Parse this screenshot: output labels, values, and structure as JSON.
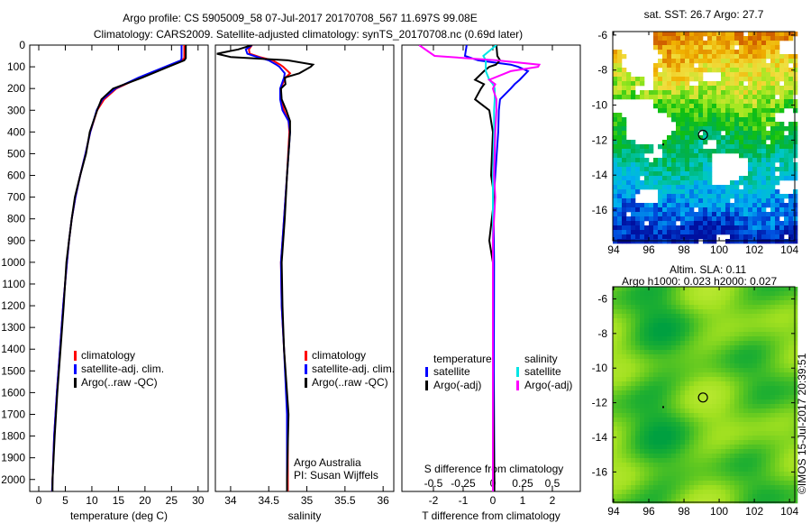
{
  "title": {
    "line1": "Argo profile: CS 5905009_58 07-Jul-2017 20170708_567 11.697S 99.08E",
    "line2": "Climatology: CARS2009. Satellite-adjusted climatology: synTS_20170708.nc (0.69d later)"
  },
  "credit": "©IMOS 15-Jul-2017 20:39:51",
  "colors": {
    "climatology": "#ff0000",
    "satellite": "#0000ff",
    "argo": "#000000",
    "s_satellite": "#00e5e5",
    "s_argo": "#ff00ff"
  },
  "chart_data": [
    {
      "type": "line",
      "id": "temperature",
      "xlabel": "temperature (deg C)",
      "ylabel": "",
      "xlim": [
        -1.7,
        31.9
      ],
      "ylim": [
        0,
        2055
      ],
      "xticks": [
        "0",
        "5",
        "10",
        "15",
        "20",
        "25",
        "30"
      ],
      "xtick_values": [
        0,
        5,
        10,
        15,
        20,
        25,
        30
      ],
      "yticks": [
        "0",
        "100",
        "200",
        "300",
        "400",
        "500",
        "600",
        "700",
        "800",
        "900",
        "1000",
        "1100",
        "1200",
        "1300",
        "1400",
        "1500",
        "1600",
        "1700",
        "1800",
        "1900",
        "2000"
      ],
      "ytick_values": [
        0,
        100,
        200,
        300,
        400,
        500,
        600,
        700,
        800,
        900,
        1000,
        1100,
        1200,
        1300,
        1400,
        1500,
        1600,
        1700,
        1800,
        1900,
        2000
      ],
      "depth": [
        0,
        60,
        70,
        100,
        150,
        200,
        250,
        300,
        400,
        500,
        600,
        700,
        800,
        900,
        1000,
        1200,
        1400,
        1600,
        1800,
        2000,
        2055
      ],
      "series": [
        {
          "name": "climatology",
          "color": "climatology",
          "values": [
            27.4,
            27.4,
            27.0,
            24.0,
            19.0,
            14.6,
            12.3,
            11.0,
            9.7,
            8.8,
            7.8,
            6.9,
            6.2,
            5.7,
            5.3,
            4.6,
            4.0,
            3.4,
            2.9,
            2.6,
            2.5
          ]
        },
        {
          "name": "satellite-adj. clim.",
          "color": "satellite",
          "values": [
            26.9,
            26.9,
            26.8,
            23.8,
            18.8,
            14.4,
            12.0,
            10.9,
            9.7,
            8.8,
            7.8,
            6.9,
            6.2,
            5.7,
            5.3,
            4.6,
            4.0,
            3.4,
            2.9,
            2.6,
            2.5
          ]
        },
        {
          "name": "Argo(..raw -QC)",
          "color": "argo",
          "values": [
            27.7,
            27.7,
            27.4,
            24.4,
            19.5,
            14.0,
            11.8,
            11.0,
            9.6,
            8.9,
            7.8,
            6.8,
            6.2,
            5.7,
            5.2,
            4.7,
            4.1,
            3.5,
            3.0,
            2.6,
            2.6
          ]
        }
      ],
      "legend": [
        "climatology",
        "satellite-adj. clim.",
        "Argo(..raw -QC)"
      ]
    },
    {
      "type": "line",
      "id": "salinity",
      "xlabel": "salinity",
      "xlim": [
        33.8,
        36.14
      ],
      "ylim": [
        0,
        2055
      ],
      "xticks": [
        "34",
        "34.5",
        "35",
        "35.5",
        "36"
      ],
      "xtick_values": [
        34,
        34.5,
        35,
        35.5,
        36
      ],
      "depth": [
        0,
        20,
        40,
        55,
        70,
        90,
        100,
        130,
        150,
        180,
        200,
        250,
        300,
        350,
        400,
        600,
        800,
        1000,
        1200,
        1400,
        1700,
        2000,
        2055
      ],
      "series": [
        {
          "name": "climatology",
          "color": "climatology",
          "values": [
            34.28,
            34.24,
            34.25,
            34.38,
            34.55,
            34.65,
            34.69,
            34.78,
            34.72,
            34.68,
            34.66,
            34.66,
            34.7,
            34.76,
            34.77,
            34.74,
            34.7,
            34.66,
            34.67,
            34.7,
            34.75,
            34.75,
            34.75
          ]
        },
        {
          "name": "satellite-adj. clim.",
          "color": "satellite",
          "values": [
            34.28,
            34.2,
            34.22,
            34.35,
            34.5,
            34.6,
            34.64,
            34.71,
            34.7,
            34.67,
            34.65,
            34.65,
            34.68,
            34.76,
            34.78,
            34.74,
            34.7,
            34.66,
            34.67,
            34.7,
            34.74,
            34.74,
            34.74
          ]
        },
        {
          "name": "Argo(..raw -QC)",
          "color": "argo",
          "values": [
            34.28,
            34.1,
            33.82,
            34.0,
            34.75,
            35.08,
            35.05,
            34.9,
            34.71,
            34.72,
            34.66,
            34.67,
            34.73,
            34.78,
            34.78,
            34.74,
            34.71,
            34.67,
            34.68,
            34.7,
            34.76,
            34.74,
            34.74
          ]
        }
      ],
      "legend": [
        "climatology",
        "satellite-adj. clim.",
        "Argo(..raw -QC)"
      ],
      "annotation": [
        "Argo Australia",
        "PI: Susan Wijffels"
      ]
    },
    {
      "type": "line",
      "id": "difference",
      "xlabel": "T difference from climatology",
      "x2label": "S difference from climatology",
      "xlim": [
        -3.06,
        2.94
      ],
      "ylim": [
        0,
        2055
      ],
      "xticks": [
        "-2",
        "-1",
        "0",
        "1",
        "2"
      ],
      "xtick_values": [
        -2,
        -1,
        0,
        1,
        2
      ],
      "x2ticks": [
        "-0.5",
        "-0.25",
        "0",
        "0.25",
        "0.5"
      ],
      "x2tick_values": [
        -0.5,
        -0.25,
        0,
        0.25,
        0.5
      ],
      "depth": [
        0,
        50,
        70,
        90,
        100,
        120,
        160,
        180,
        200,
        250,
        300,
        400,
        600,
        700,
        900,
        1000,
        1500,
        2000,
        2055
      ],
      "series": [
        {
          "name": "temperature satellite",
          "axis": "T",
          "color": "satellite",
          "values": [
            -0.88,
            -0.94,
            -0.5,
            0.6,
            0.85,
            1.18,
            0.9,
            0.73,
            0.6,
            0.24,
            0.2,
            0.18,
            0.08,
            0.03,
            0.03,
            0.04,
            0.03,
            0.05,
            0.05
          ]
        },
        {
          "name": "temperature Argo(-adj)",
          "axis": "T",
          "color": "argo",
          "values": [
            0.12,
            0.15,
            0.24,
            0.1,
            -0.12,
            -0.3,
            -0.6,
            -0.3,
            -0.4,
            -0.6,
            -0.12,
            0.0,
            -0.06,
            0.05,
            -0.12,
            0.0,
            0.0,
            0.05,
            0.05
          ]
        },
        {
          "name": "salinity satellite",
          "axis": "S",
          "color": "s_satellite",
          "values": [
            0.03,
            -0.08,
            -0.06,
            -0.06,
            -0.06,
            -0.06,
            -0.03,
            0.0,
            0.015,
            0.015,
            0.01,
            0.01,
            0.0,
            0.0,
            0.0,
            0.0,
            0.0,
            0.0,
            0.0
          ]
        },
        {
          "name": "salinity Argo(-adj)",
          "axis": "S",
          "color": "s_argo",
          "values": [
            -0.62,
            -0.49,
            0.03,
            0.39,
            0.38,
            0.15,
            -0.03,
            0.02,
            0.0,
            0.03,
            0.03,
            0.02,
            0.01,
            0.02,
            0.0,
            0.0,
            0.0,
            0.0,
            0.0
          ]
        }
      ],
      "legend_headers": [
        "temperature",
        "salinity"
      ],
      "legend": [
        "satellite",
        "Argo(-adj)",
        "satellite",
        "Argo(-adj)"
      ]
    },
    {
      "type": "heatmap",
      "id": "sst-map",
      "title": "sat. SST: 26.7 Argo: 27.7",
      "xlim": [
        93.95,
        104.3
      ],
      "ylim": [
        -17.75,
        -5.8
      ],
      "xticks": [
        "94",
        "96",
        "98",
        "100",
        "102",
        "104"
      ],
      "xtick_values": [
        94,
        96,
        98,
        100,
        102,
        104
      ],
      "yticks": [
        "-6",
        "-8",
        "-10",
        "-12",
        "-14",
        "-16"
      ],
      "ytick_values": [
        -6,
        -8,
        -10,
        -12,
        -14,
        -16
      ],
      "marker": {
        "lon": 99.08,
        "lat": -11.697
      }
    },
    {
      "type": "heatmap",
      "id": "sla-map",
      "title": "Altim. SLA: 0.11",
      "subtitle": "Argo h1000: 0.023 h2000: 0.027",
      "xlim": [
        93.95,
        104.3
      ],
      "ylim": [
        -17.75,
        -5.3
      ],
      "xticks": [
        "94",
        "96",
        "98",
        "100",
        "102",
        "104"
      ],
      "xtick_values": [
        94,
        96,
        98,
        100,
        102,
        104
      ],
      "yticks": [
        "-6",
        "-8",
        "-10",
        "-12",
        "-14",
        "-16"
      ],
      "ytick_values": [
        -6,
        -8,
        -10,
        -12,
        -14,
        -16
      ],
      "marker": {
        "lon": 99.08,
        "lat": -11.697
      }
    }
  ]
}
